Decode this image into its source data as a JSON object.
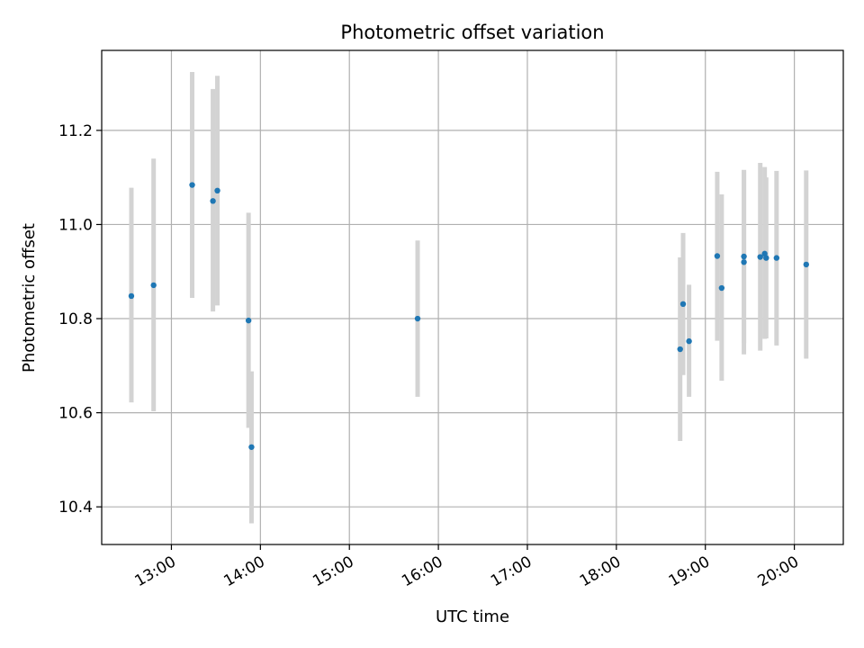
{
  "chart_data": {
    "type": "scatter",
    "title": "Photometric offset variation",
    "xlabel": "UTC time",
    "ylabel": "Photometric offset",
    "x_tick_labels": [
      "13:00",
      "14:00",
      "15:00",
      "16:00",
      "17:00",
      "18:00",
      "19:00",
      "20:00"
    ],
    "y_tick_labels": [
      "10.4",
      "10.6",
      "10.8",
      "11.0",
      "11.2"
    ],
    "y_ticks": [
      10.4,
      10.6,
      10.8,
      11.0,
      11.2
    ],
    "xlim": [
      "12:13",
      "20:33"
    ],
    "ylim": [
      10.32,
      11.37
    ],
    "grid": true,
    "colors": {
      "points": "#1f77b4",
      "errorbars": "#d3d3d3",
      "grid": "#b0b0b0"
    },
    "points": [
      {
        "x": "12:33",
        "y": 10.848,
        "ylow": 10.622,
        "yhigh": 11.078
      },
      {
        "x": "12:48",
        "y": 10.871,
        "ylow": 10.603,
        "yhigh": 11.14
      },
      {
        "x": "13:14",
        "y": 11.084,
        "ylow": 10.844,
        "yhigh": 11.324
      },
      {
        "x": "13:28",
        "y": 11.05,
        "ylow": 10.815,
        "yhigh": 11.288
      },
      {
        "x": "13:31",
        "y": 11.072,
        "ylow": 10.828,
        "yhigh": 11.316
      },
      {
        "x": "13:52",
        "y": 10.796,
        "ylow": 10.568,
        "yhigh": 11.025
      },
      {
        "x": "13:54",
        "y": 10.527,
        "ylow": 10.365,
        "yhigh": 10.688
      },
      {
        "x": "15:46",
        "y": 10.8,
        "ylow": 10.634,
        "yhigh": 10.966
      },
      {
        "x": "18:43",
        "y": 10.735,
        "ylow": 10.54,
        "yhigh": 10.93
      },
      {
        "x": "18:45",
        "y": 10.831,
        "ylow": 10.68,
        "yhigh": 10.982
      },
      {
        "x": "18:49",
        "y": 10.752,
        "ylow": 10.634,
        "yhigh": 10.872
      },
      {
        "x": "19:08",
        "y": 10.933,
        "ylow": 10.753,
        "yhigh": 11.112
      },
      {
        "x": "19:11",
        "y": 10.865,
        "ylow": 10.668,
        "yhigh": 11.064
      },
      {
        "x": "19:26",
        "y": 10.92,
        "ylow": 10.724,
        "yhigh": 11.116
      },
      {
        "x": "19:26",
        "y": 10.932,
        "ylow": 10.748,
        "yhigh": 11.115
      },
      {
        "x": "19:37",
        "y": 10.931,
        "ylow": 10.732,
        "yhigh": 11.131
      },
      {
        "x": "19:40",
        "y": 10.938,
        "ylow": 10.757,
        "yhigh": 11.122
      },
      {
        "x": "19:41",
        "y": 10.929,
        "ylow": 10.758,
        "yhigh": 11.1
      },
      {
        "x": "19:48",
        "y": 10.929,
        "ylow": 10.743,
        "yhigh": 11.114
      },
      {
        "x": "20:08",
        "y": 10.915,
        "ylow": 10.715,
        "yhigh": 11.115
      }
    ]
  }
}
